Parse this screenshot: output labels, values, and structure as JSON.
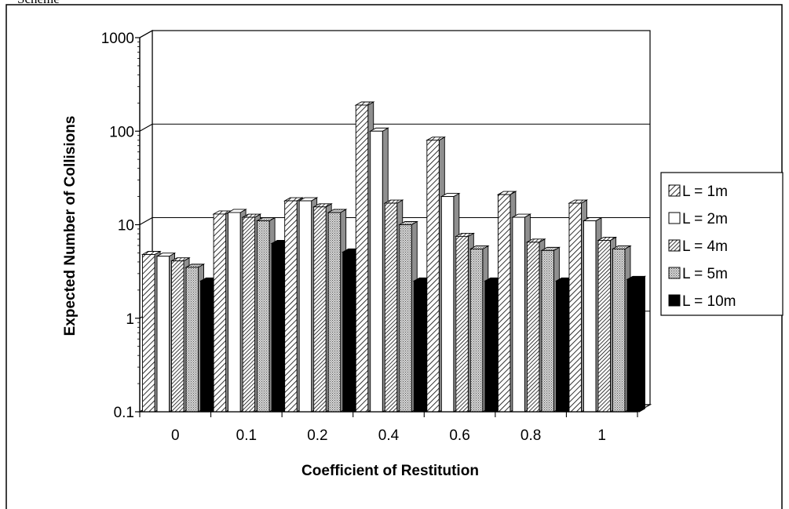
{
  "top_fragment": "Scheme",
  "chart_data": {
    "type": "bar",
    "style": "3d-clustered-column",
    "yscale": "log",
    "ylim": [
      0.1,
      1000
    ],
    "yticks": [
      "0.1",
      "1",
      "10",
      "100",
      "1000"
    ],
    "grid": true,
    "legend_position": "right",
    "xlabel": "Coefficient of Restitution",
    "ylabel": "Expected Number of Collisions",
    "categories": [
      "0",
      "0.1",
      "0.2",
      "0.4",
      "0.6",
      "0.8",
      "1"
    ],
    "series": [
      {
        "name": "L = 1m",
        "pattern": "diagonal-hatch",
        "values": [
          4.8,
          13,
          18,
          190,
          80,
          21,
          17
        ]
      },
      {
        "name": "L = 2m",
        "pattern": "white",
        "values": [
          4.6,
          13.5,
          18,
          100,
          20,
          12,
          11
        ]
      },
      {
        "name": "L = 4m",
        "pattern": "dense-hatch",
        "values": [
          4.1,
          12,
          15.5,
          17,
          7.5,
          6.5,
          6.8
        ]
      },
      {
        "name": "L = 5m",
        "pattern": "dotted",
        "values": [
          3.5,
          11,
          13.5,
          10,
          5.5,
          5.3,
          5.5
        ]
      },
      {
        "name": "L = 10m",
        "pattern": "black",
        "values": [
          2.5,
          6.3,
          5.1,
          2.5,
          2.5,
          2.5,
          2.6
        ]
      }
    ]
  }
}
